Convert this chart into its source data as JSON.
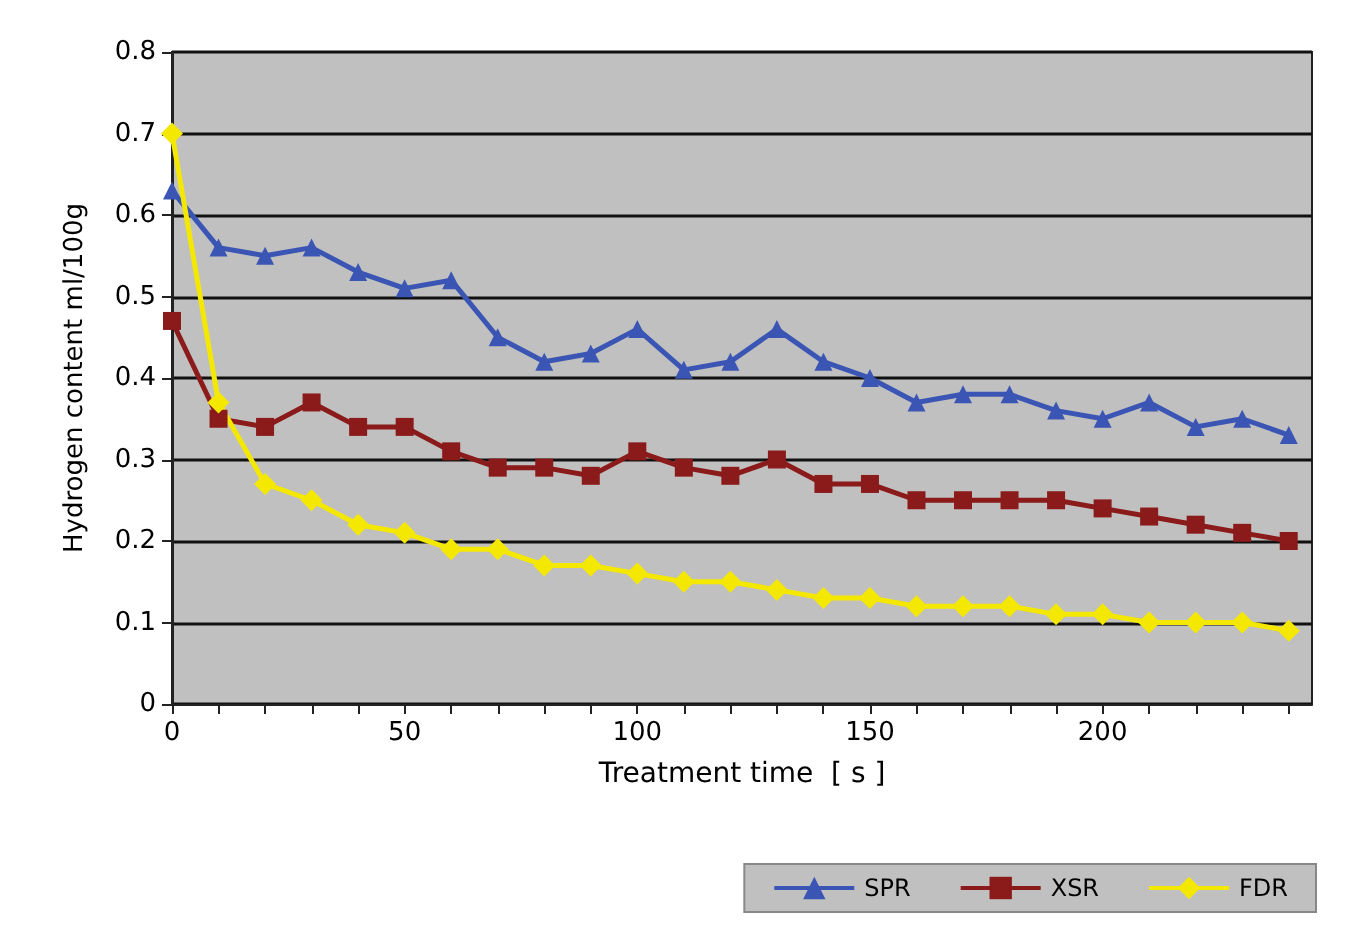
{
  "chart_data": {
    "type": "line",
    "xlabel": "Treatment time  [ s ]",
    "ylabel": "Hydrogen content ml/100g",
    "x": [
      0,
      10,
      20,
      30,
      40,
      50,
      60,
      70,
      80,
      90,
      100,
      110,
      120,
      130,
      140,
      150,
      160,
      170,
      180,
      190,
      200,
      210,
      220,
      230,
      240
    ],
    "xlim": [
      0,
      245
    ],
    "xticks": [
      0,
      50,
      100,
      150,
      200
    ],
    "ylim": [
      0,
      0.8
    ],
    "yticks": [
      0,
      0.1,
      0.2,
      0.3,
      0.4,
      0.5,
      0.6,
      0.7,
      0.8
    ],
    "grid": "y",
    "legend": "bottom right",
    "series": [
      {
        "name": "SPR",
        "color": "#3a55b4",
        "marker": "triangle",
        "values": [
          0.63,
          0.56,
          0.55,
          0.56,
          0.53,
          0.51,
          0.52,
          0.45,
          0.42,
          0.43,
          0.46,
          0.41,
          0.42,
          0.46,
          0.42,
          0.4,
          0.37,
          0.38,
          0.38,
          0.36,
          0.35,
          0.37,
          0.34,
          0.35,
          0.33
        ]
      },
      {
        "name": "XSR",
        "color": "#8b1a1a",
        "marker": "square",
        "values": [
          0.47,
          0.35,
          0.34,
          0.37,
          0.34,
          0.34,
          0.31,
          0.29,
          0.29,
          0.28,
          0.31,
          0.29,
          0.28,
          0.3,
          0.27,
          0.27,
          0.25,
          0.25,
          0.25,
          0.25,
          0.24,
          0.23,
          0.22,
          0.21,
          0.2
        ]
      },
      {
        "name": "FDR",
        "color": "#f5e800",
        "marker": "diamond",
        "values": [
          0.7,
          0.37,
          0.27,
          0.25,
          0.22,
          0.21,
          0.19,
          0.19,
          0.17,
          0.17,
          0.16,
          0.15,
          0.15,
          0.14,
          0.13,
          0.13,
          0.12,
          0.12,
          0.12,
          0.11,
          0.11,
          0.1,
          0.1,
          0.1,
          0.09
        ]
      }
    ]
  }
}
